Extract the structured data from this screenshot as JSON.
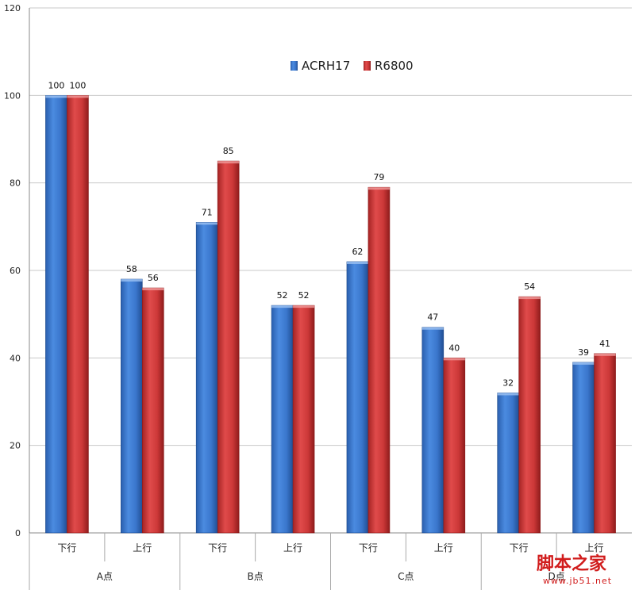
{
  "chart_data": {
    "type": "bar",
    "categories": [
      "下行",
      "上行",
      "下行",
      "上行",
      "下行",
      "上行",
      "下行",
      "上行"
    ],
    "groups": [
      {
        "label": "A点",
        "span": 2
      },
      {
        "label": "B点",
        "span": 2
      },
      {
        "label": "C点",
        "span": 2
      },
      {
        "label": "D点",
        "span": 2
      }
    ],
    "series": [
      {
        "name": "ACRH17",
        "color": "#3f7fd4",
        "values": [
          100,
          58,
          71,
          52,
          62,
          47,
          32,
          39
        ]
      },
      {
        "name": "R6800",
        "color": "#d43d3d",
        "values": [
          100,
          56,
          85,
          52,
          79,
          40,
          54,
          41
        ]
      }
    ],
    "ylim": [
      0,
      120
    ],
    "yticks": [
      0,
      20,
      40,
      60,
      80,
      100,
      120
    ],
    "grid": true,
    "legend": "top-center",
    "title": "",
    "xlabel": "",
    "ylabel": ""
  },
  "watermark": {
    "text": "脚本之家",
    "url": "www.jb51.net"
  }
}
